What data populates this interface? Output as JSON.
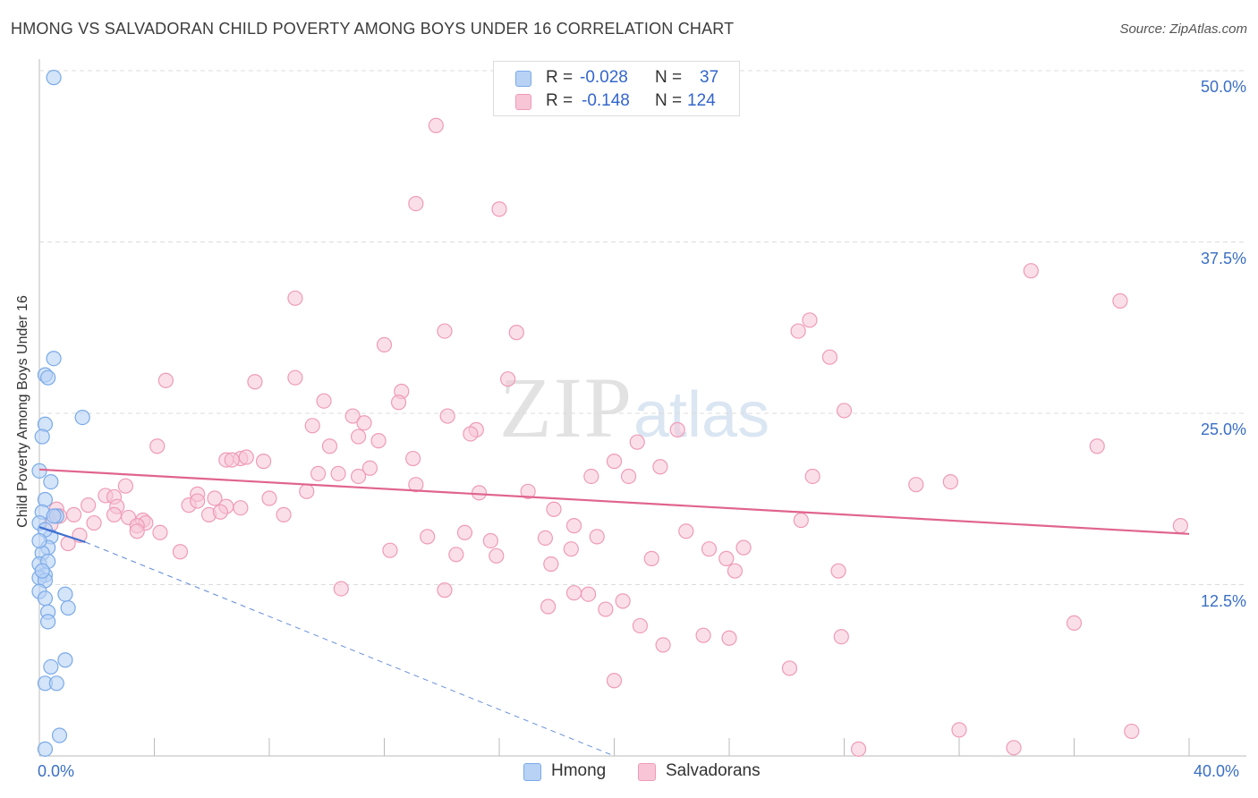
{
  "title": "HMONG VS SALVADORAN CHILD POVERTY AMONG BOYS UNDER 16 CORRELATION CHART",
  "source": "Source: ZipAtlas.com",
  "watermark": {
    "zip": "ZIP",
    "atlas": "atlas"
  },
  "legend_top": {
    "hmong": {
      "r_label": "R =",
      "r_value": "-0.028",
      "n_label": "N =",
      "n_value": "37"
    },
    "salvadorans": {
      "r_label": "R =",
      "r_value": "-0.148",
      "n_label": "N =",
      "n_value": "124"
    }
  },
  "colors": {
    "hmong_fill": "#b8d2f5",
    "hmong_stroke": "#7aaae8",
    "hmong_line": "#3d6fd1",
    "salv_fill": "#f7c5d6",
    "salv_stroke": "#ee9bb8",
    "salv_line": "#e0648e",
    "grid": "#dcdcdc",
    "tick_text": "#3a6fc4"
  },
  "chart_data": {
    "type": "scatter",
    "title": "HMONG VS SALVADORAN CHILD POVERTY AMONG BOYS UNDER 16 CORRELATION CHART",
    "xlabel": "",
    "ylabel": "Child Poverty Among Boys Under 16",
    "xlim": [
      0,
      40
    ],
    "ylim": [
      0,
      50
    ],
    "x_tick_labels": [
      "0.0%",
      "40.0%"
    ],
    "y_ticks": [
      12.5,
      25.0,
      37.5,
      50.0
    ],
    "y_tick_labels": [
      "12.5%",
      "25.0%",
      "37.5%",
      "50.0%"
    ],
    "grid": true,
    "legend": [
      "Hmong",
      "Salvadorans"
    ],
    "series": [
      {
        "name": "Hmong",
        "r": -0.028,
        "n": 37,
        "trend": {
          "x0": 0.0,
          "y0": 16.7,
          "x1": 1.6,
          "y1": 15.6,
          "extended_dashed_to": {
            "x": 20.0,
            "y": 0.0
          }
        },
        "points": [
          [
            0.5,
            49.5
          ],
          [
            0.5,
            29.0
          ],
          [
            0.2,
            27.8
          ],
          [
            0.3,
            27.6
          ],
          [
            1.5,
            24.7
          ],
          [
            0.2,
            24.2
          ],
          [
            0.1,
            23.3
          ],
          [
            0.0,
            20.8
          ],
          [
            0.4,
            20.0
          ],
          [
            0.2,
            18.7
          ],
          [
            0.1,
            17.8
          ],
          [
            0.6,
            17.5
          ],
          [
            0.0,
            17.0
          ],
          [
            0.4,
            16.0
          ],
          [
            0.3,
            15.2
          ],
          [
            0.1,
            14.8
          ],
          [
            0.0,
            14.0
          ],
          [
            0.2,
            13.2
          ],
          [
            0.0,
            13.0
          ],
          [
            0.2,
            12.8
          ],
          [
            0.0,
            12.0
          ],
          [
            0.9,
            11.8
          ],
          [
            0.2,
            11.5
          ],
          [
            1.0,
            10.8
          ],
          [
            0.3,
            10.5
          ],
          [
            0.3,
            9.8
          ],
          [
            0.9,
            7.0
          ],
          [
            0.4,
            6.5
          ],
          [
            0.2,
            5.3
          ],
          [
            0.6,
            5.3
          ],
          [
            0.7,
            1.5
          ],
          [
            0.2,
            0.5
          ],
          [
            0.5,
            17.5
          ],
          [
            0.2,
            16.5
          ],
          [
            0.0,
            15.7
          ],
          [
            0.3,
            14.2
          ],
          [
            0.1,
            13.5
          ]
        ]
      },
      {
        "name": "Salvadorans",
        "r": -0.148,
        "n": 124,
        "trend": {
          "x0": 0.0,
          "y0": 20.9,
          "x1": 40.0,
          "y1": 16.2
        },
        "points": [
          [
            13.8,
            46.0
          ],
          [
            13.1,
            40.3
          ],
          [
            16.0,
            39.9
          ],
          [
            34.5,
            35.4
          ],
          [
            37.6,
            33.2
          ],
          [
            8.9,
            33.4
          ],
          [
            26.8,
            31.8
          ],
          [
            14.1,
            31.0
          ],
          [
            16.6,
            30.9
          ],
          [
            26.4,
            31.0
          ],
          [
            12.0,
            30.0
          ],
          [
            27.5,
            29.1
          ],
          [
            4.4,
            27.4
          ],
          [
            7.5,
            27.3
          ],
          [
            8.9,
            27.6
          ],
          [
            16.3,
            27.5
          ],
          [
            12.6,
            26.6
          ],
          [
            12.5,
            25.8
          ],
          [
            9.9,
            25.9
          ],
          [
            28.0,
            25.2
          ],
          [
            10.9,
            24.8
          ],
          [
            11.3,
            24.3
          ],
          [
            14.2,
            24.8
          ],
          [
            9.5,
            24.1
          ],
          [
            15.2,
            23.8
          ],
          [
            22.2,
            23.8
          ],
          [
            11.1,
            23.3
          ],
          [
            11.8,
            23.0
          ],
          [
            15.0,
            23.5
          ],
          [
            20.8,
            22.9
          ],
          [
            36.8,
            22.6
          ],
          [
            4.1,
            22.6
          ],
          [
            10.1,
            22.6
          ],
          [
            13.0,
            21.7
          ],
          [
            7.0,
            21.7
          ],
          [
            7.8,
            21.5
          ],
          [
            7.2,
            21.8
          ],
          [
            6.5,
            21.6
          ],
          [
            6.7,
            21.6
          ],
          [
            11.5,
            21.0
          ],
          [
            20.0,
            21.5
          ],
          [
            21.6,
            21.1
          ],
          [
            9.7,
            20.6
          ],
          [
            10.4,
            20.6
          ],
          [
            11.1,
            20.4
          ],
          [
            19.2,
            20.4
          ],
          [
            20.5,
            20.4
          ],
          [
            26.9,
            20.4
          ],
          [
            30.5,
            19.8
          ],
          [
            31.7,
            20.0
          ],
          [
            13.1,
            19.8
          ],
          [
            3.0,
            19.7
          ],
          [
            9.3,
            19.3
          ],
          [
            15.3,
            19.2
          ],
          [
            17.0,
            19.3
          ],
          [
            2.3,
            19.0
          ],
          [
            2.6,
            18.9
          ],
          [
            5.5,
            19.1
          ],
          [
            6.1,
            18.8
          ],
          [
            8.0,
            18.8
          ],
          [
            1.7,
            18.3
          ],
          [
            2.7,
            18.2
          ],
          [
            5.2,
            18.3
          ],
          [
            5.5,
            18.6
          ],
          [
            6.5,
            18.2
          ],
          [
            7.0,
            18.1
          ],
          [
            17.9,
            18.0
          ],
          [
            0.6,
            18.0
          ],
          [
            0.7,
            17.5
          ],
          [
            1.2,
            17.6
          ],
          [
            2.6,
            17.6
          ],
          [
            3.1,
            17.4
          ],
          [
            3.6,
            17.2
          ],
          [
            5.9,
            17.6
          ],
          [
            6.3,
            17.8
          ],
          [
            8.5,
            17.6
          ],
          [
            26.5,
            17.2
          ],
          [
            0.4,
            16.9
          ],
          [
            1.9,
            17.0
          ],
          [
            3.7,
            17.0
          ],
          [
            3.4,
            16.8
          ],
          [
            18.6,
            16.8
          ],
          [
            39.7,
            16.8
          ],
          [
            4.2,
            16.3
          ],
          [
            3.4,
            16.4
          ],
          [
            1.4,
            16.1
          ],
          [
            13.5,
            16.0
          ],
          [
            14.8,
            16.3
          ],
          [
            17.6,
            15.9
          ],
          [
            19.4,
            16.0
          ],
          [
            22.5,
            16.4
          ],
          [
            1.0,
            15.5
          ],
          [
            15.7,
            15.7
          ],
          [
            4.9,
            14.9
          ],
          [
            12.2,
            15.0
          ],
          [
            18.5,
            15.1
          ],
          [
            23.3,
            15.1
          ],
          [
            24.5,
            15.2
          ],
          [
            14.5,
            14.7
          ],
          [
            15.9,
            14.6
          ],
          [
            21.3,
            14.4
          ],
          [
            23.9,
            14.4
          ],
          [
            17.8,
            14.0
          ],
          [
            24.2,
            13.5
          ],
          [
            27.8,
            13.5
          ],
          [
            10.5,
            12.2
          ],
          [
            14.1,
            12.1
          ],
          [
            18.6,
            11.9
          ],
          [
            19.1,
            11.8
          ],
          [
            20.3,
            11.3
          ],
          [
            17.7,
            10.9
          ],
          [
            19.7,
            10.7
          ],
          [
            21.7,
            8.1
          ],
          [
            23.1,
            8.8
          ],
          [
            24.0,
            8.6
          ],
          [
            27.9,
            8.7
          ],
          [
            26.1,
            6.4
          ],
          [
            20.0,
            5.5
          ],
          [
            32.0,
            1.9
          ],
          [
            38.0,
            1.8
          ],
          [
            28.5,
            0.5
          ],
          [
            33.9,
            0.6
          ],
          [
            20.9,
            9.5
          ],
          [
            36.0,
            9.7
          ]
        ]
      }
    ]
  }
}
